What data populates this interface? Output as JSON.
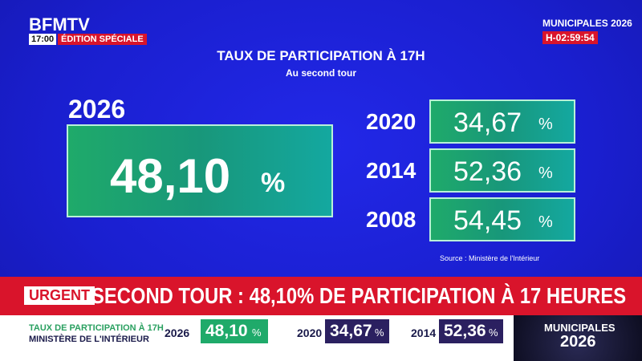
{
  "header": {
    "logo": "BFMTV",
    "time": "17:00",
    "edition": "ÉDITION SPÉCIALE",
    "event": "MUNICIPALES 2026",
    "countdown": "H-02:59:54"
  },
  "panel": {
    "title": "TAUX DE PARTICIPATION À 17H",
    "subtitle": "Au second tour",
    "main": {
      "year": "2026",
      "value": "48,10",
      "unit": "%"
    },
    "rows": [
      {
        "year": "2020",
        "value": "34,67",
        "unit": "%"
      },
      {
        "year": "2014",
        "value": "52,36",
        "unit": "%"
      },
      {
        "year": "2008",
        "value": "54,45",
        "unit": "%"
      }
    ],
    "source": "Source :  Ministère de l'Intérieur"
  },
  "banner": {
    "tag": "URGENT",
    "headline": "SECOND TOUR : 48,10% DE PARTICIPATION À 17 HEURES"
  },
  "ticker": {
    "title": "TAUX DE PARTICIPATION À 17H",
    "source": "MINISTÈRE DE L'INTÉRIEUR",
    "items": [
      {
        "year": "2026",
        "value": "48,10",
        "unit": "%"
      },
      {
        "year": "2020",
        "value": "34,67",
        "unit": "%"
      },
      {
        "year": "2014",
        "value": "52,36",
        "unit": "%"
      }
    ],
    "logo_top": "MUNICIPALES",
    "logo_bottom": "2026"
  }
}
